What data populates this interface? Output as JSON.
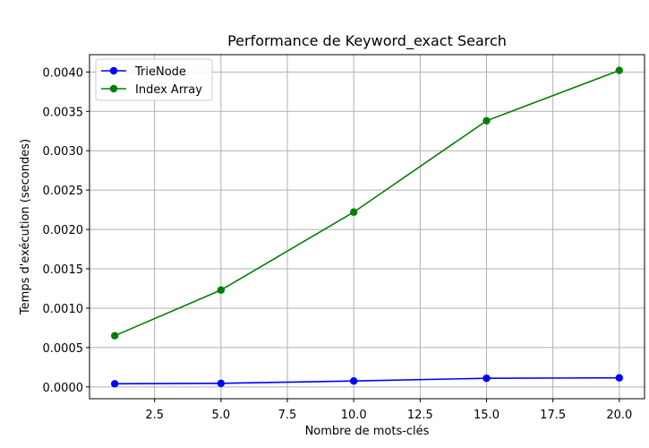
{
  "chart_data": {
    "type": "line",
    "title": "Performance de Keyword_exact Search",
    "xlabel": "Nombre de mots-clés",
    "ylabel": "Temps d'exécution (secondes)",
    "x": [
      1,
      5,
      10,
      15,
      20
    ],
    "xlim": [
      0.05,
      20.95
    ],
    "ylim": [
      -0.00015,
      0.00422
    ],
    "xticks": [
      2.5,
      5.0,
      7.5,
      10.0,
      12.5,
      15.0,
      17.5,
      20.0
    ],
    "xtick_labels": [
      "2.5",
      "5.0",
      "7.5",
      "10.0",
      "12.5",
      "15.0",
      "17.5",
      "20.0"
    ],
    "yticks": [
      0.0,
      0.0005,
      0.001,
      0.0015,
      0.002,
      0.0025,
      0.003,
      0.0035,
      0.004
    ],
    "ytick_labels": [
      "0.0000",
      "0.0005",
      "0.0010",
      "0.0015",
      "0.0020",
      "0.0025",
      "0.0030",
      "0.0035",
      "0.0040"
    ],
    "grid": true,
    "legend_position": "top-left",
    "series": [
      {
        "name": "TrieNode",
        "color": "#0000ff",
        "marker": "circle",
        "values": [
          4e-05,
          4.5e-05,
          7.5e-05,
          0.00011,
          0.000115
        ]
      },
      {
        "name": "Index Array",
        "color": "#008000",
        "marker": "circle",
        "values": [
          0.00065,
          0.00123,
          0.00222,
          0.00338,
          0.00402
        ]
      }
    ]
  }
}
